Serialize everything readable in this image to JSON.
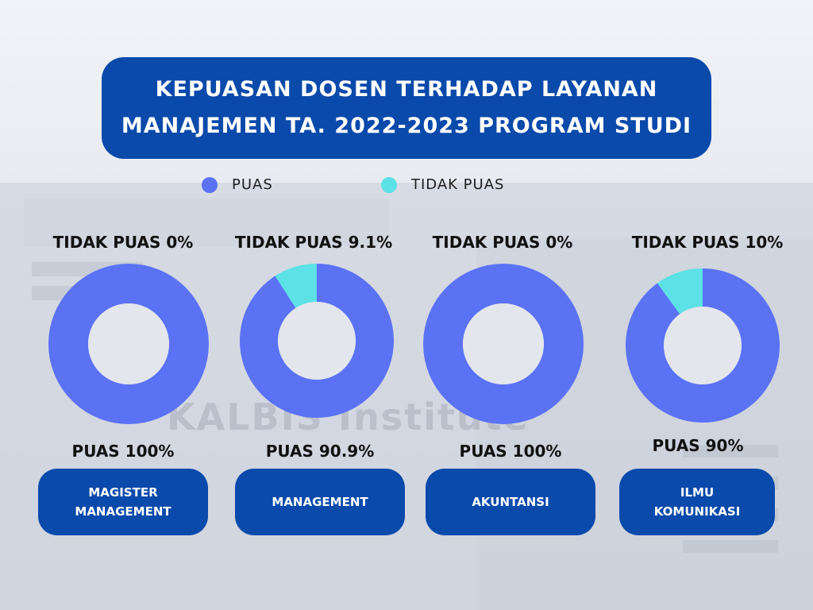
{
  "title": {
    "line1": "KEPUASAN DOSEN TERHADAP LAYANAN",
    "line2": "MANAJEMEN TA. 2022-2023 PROGRAM STUDI"
  },
  "legend": [
    {
      "label": "PUAS",
      "color": "#5b72f5"
    },
    {
      "label": "TIDAK PUAS",
      "color": "#5ce1e6"
    }
  ],
  "chart_data": [
    {
      "type": "pie",
      "category": "MAGISTER MANAGEMENT",
      "series": [
        {
          "name": "PUAS",
          "value": 100
        },
        {
          "name": "TIDAK PUAS",
          "value": 0
        }
      ],
      "labels": {
        "top": "TIDAK PUAS 0%",
        "bottom": "PUAS 100%"
      }
    },
    {
      "type": "pie",
      "category": "MANAGEMENT",
      "series": [
        {
          "name": "PUAS",
          "value": 90.9
        },
        {
          "name": "TIDAK PUAS",
          "value": 9.1
        }
      ],
      "labels": {
        "top": "TIDAK PUAS 9.1%",
        "bottom": "PUAS 90.9%"
      }
    },
    {
      "type": "pie",
      "category": "AKUNTANSI",
      "series": [
        {
          "name": "PUAS",
          "value": 100
        },
        {
          "name": "TIDAK PUAS",
          "value": 0
        }
      ],
      "labels": {
        "top": "TIDAK PUAS 0%",
        "bottom": "PUAS 100%"
      }
    },
    {
      "type": "pie",
      "category": "ILMU KOMUNIKASI",
      "series": [
        {
          "name": "PUAS",
          "value": 90
        },
        {
          "name": "TIDAK PUAS",
          "value": 10
        }
      ],
      "labels": {
        "top": "TIDAK PUAS 10%",
        "bottom": "PUAS 90%"
      }
    }
  ],
  "programs": {
    "p1_line1": "MAGISTER",
    "p1_line2": "MANAGEMENT",
    "p2": "MANAGEMENT",
    "p3": "AKUNTANSI",
    "p4_line1": "ILMU",
    "p4_line2": "KOMUNIKASI"
  },
  "background_text": "KALBIS Institute",
  "colors": {
    "primary": "#0a4aab",
    "puas": "#5b72f5",
    "tidak_puas": "#5ce1e6"
  }
}
